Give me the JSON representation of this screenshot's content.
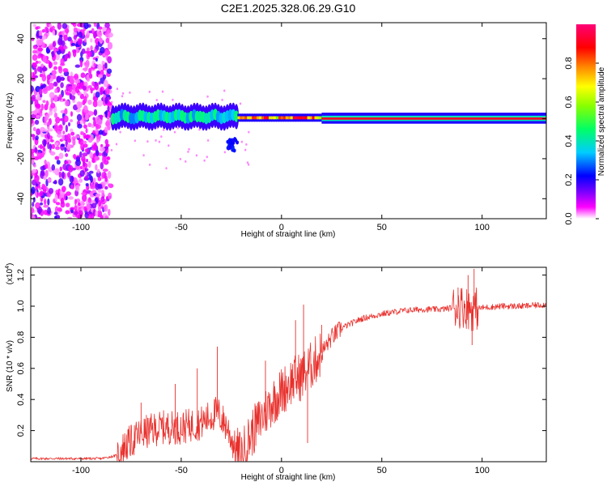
{
  "title": "C2E1.2025.328.06.29.G10",
  "chart_data": [
    {
      "type": "heatmap",
      "name": "doppler-spectrogram",
      "xlabel": "Height of straight line (km)",
      "ylabel": "Frequency (Hz)",
      "xlim": [
        -125,
        132
      ],
      "ylim": [
        -50,
        48
      ],
      "xticks": [
        -100,
        -50,
        0,
        50,
        100
      ],
      "xtick_labels": [
        "-100",
        "-50",
        "0",
        "50",
        "100"
      ],
      "yticks": [
        -40,
        -20,
        0,
        20,
        40
      ],
      "ytick_labels": [
        "-40",
        "-20",
        "0",
        "20",
        "40"
      ],
      "colorbar": {
        "label": "Normalized spectral amplitude",
        "range": [
          0,
          1
        ],
        "ticks": [
          0.0,
          0.2,
          0.4,
          0.6,
          0.8
        ],
        "tick_labels": [
          "0.0",
          "0.2",
          "0.4",
          "0.6",
          "0.8"
        ],
        "colormap": [
          "#ffffff",
          "#ff00ff",
          "#5500ff",
          "#0000ff",
          "#00ccff",
          "#00ff66",
          "#88ff00",
          "#ffff00",
          "#ff8800",
          "#ff0000",
          "#ff0077"
        ]
      },
      "regions": [
        {
          "x_range": [
            -125,
            -85
          ],
          "center_hz": 0,
          "spread_hz": 48,
          "amplitude": 0.15,
          "note": "scattered noise"
        },
        {
          "x_range": [
            -85,
            -22
          ],
          "center_hz": 1.5,
          "spread_hz": 6,
          "amplitude": 0.45,
          "note": "broad carrier"
        },
        {
          "x_range": [
            -27,
            -22
          ],
          "center_hz": -13,
          "spread_hz": 2,
          "amplitude": 0.2,
          "note": "isolated blob"
        },
        {
          "x_range": [
            -22,
            20
          ],
          "center_hz": 0.5,
          "spread_hz": 2,
          "amplitude": 0.8,
          "note": "narrowing carrier"
        },
        {
          "x_range": [
            20,
            132
          ],
          "center_hz": 0,
          "spread_hz": 1.5,
          "amplitude": 0.95,
          "note": "narrow carrier"
        }
      ]
    },
    {
      "type": "line",
      "name": "snr-curve",
      "xlabel": "Height of straight line (km)",
      "ylabel": "SNR (10 * v/v)",
      "scale_label": "(x10",
      "scale_exponent": "4",
      "color": "#e8302c",
      "xlim": [
        -125,
        132
      ],
      "ylim": [
        0,
        1.25
      ],
      "xticks": [
        -100,
        -50,
        0,
        50,
        100
      ],
      "xtick_labels": [
        "-100",
        "-50",
        "0",
        "50",
        "100"
      ],
      "yticks": [
        0.2,
        0.4,
        0.6,
        0.8,
        1.0,
        1.2
      ],
      "ytick_labels": [
        "0.2",
        "0.4",
        "0.6",
        "0.8",
        "1.0",
        "1.2"
      ],
      "envelope_x": [
        -125,
        -90,
        -82,
        -78,
        -70,
        -60,
        -50,
        -40,
        -32,
        -27,
        -23,
        -20,
        -15,
        -10,
        -5,
        0,
        5,
        10,
        15,
        20,
        25,
        30,
        40,
        50,
        60,
        70,
        80,
        85,
        90,
        95,
        100,
        110,
        120,
        132
      ],
      "envelope_y": [
        0.02,
        0.02,
        0.04,
        0.1,
        0.18,
        0.22,
        0.22,
        0.25,
        0.32,
        0.22,
        0.08,
        0.04,
        0.18,
        0.28,
        0.38,
        0.45,
        0.52,
        0.55,
        0.62,
        0.7,
        0.8,
        0.86,
        0.92,
        0.95,
        0.97,
        0.98,
        0.98,
        0.99,
        1.0,
        0.98,
        0.99,
        1.0,
        1.0,
        1.01
      ],
      "spikes": [
        {
          "x": -32,
          "y": 0.74
        },
        {
          "x": -42,
          "y": 0.6
        },
        {
          "x": -53,
          "y": 0.5
        },
        {
          "x": -70,
          "y": 0.38
        },
        {
          "x": -8,
          "y": 0.65
        },
        {
          "x": 7,
          "y": 0.91
        },
        {
          "x": 11,
          "y": 1.01
        },
        {
          "x": 13,
          "y": 0.12
        },
        {
          "x": 20,
          "y": 0.88
        },
        {
          "x": 88,
          "y": 1.12
        },
        {
          "x": 93,
          "y": 1.2
        },
        {
          "x": 96,
          "y": 1.24
        },
        {
          "x": 95,
          "y": 0.75
        }
      ]
    }
  ]
}
